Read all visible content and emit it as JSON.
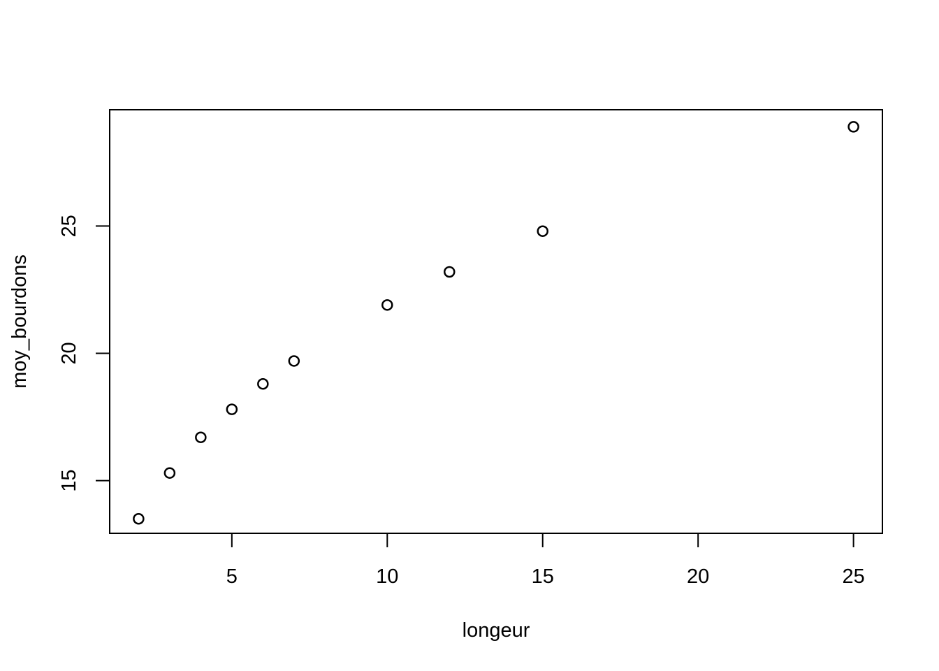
{
  "chart_data": {
    "type": "scatter",
    "title": "",
    "xlabel": "longeur",
    "ylabel": "moy_bourdons",
    "xlim": [
      1.07,
      25.93
    ],
    "ylim": [
      12.93,
      29.57
    ],
    "x_ticks": [
      5,
      10,
      15,
      20,
      25
    ],
    "y_ticks": [
      15,
      20,
      25
    ],
    "grid": false,
    "marker": "open-circle",
    "series": [
      {
        "points": [
          {
            "x": 2,
            "y": 13.5
          },
          {
            "x": 3,
            "y": 15.3
          },
          {
            "x": 4,
            "y": 16.7
          },
          {
            "x": 5,
            "y": 17.8
          },
          {
            "x": 6,
            "y": 18.8
          },
          {
            "x": 7,
            "y": 19.7
          },
          {
            "x": 10,
            "y": 21.9
          },
          {
            "x": 12,
            "y": 23.2
          },
          {
            "x": 15,
            "y": 24.8
          },
          {
            "x": 25,
            "y": 28.9
          }
        ]
      }
    ]
  }
}
